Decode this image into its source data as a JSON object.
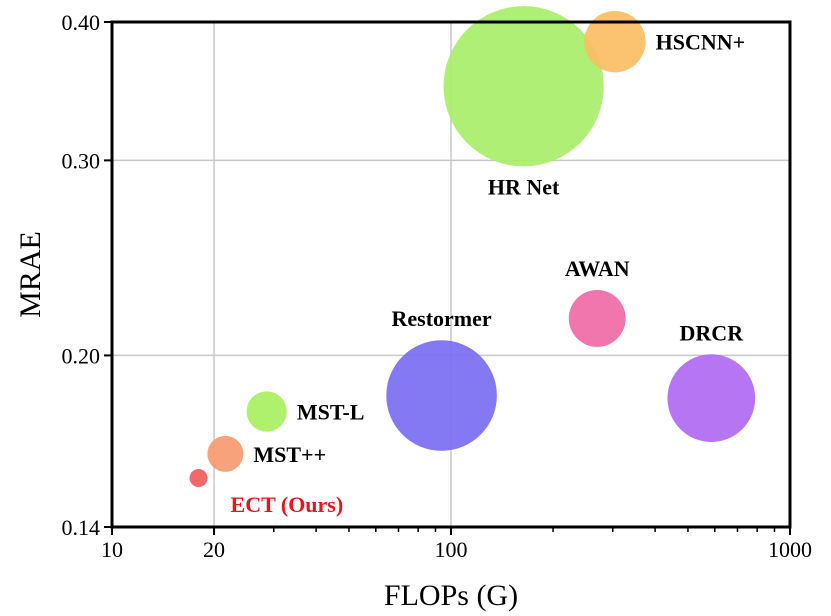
{
  "chart_data": {
    "type": "scatter",
    "title": "",
    "xlabel": "FLOPs (G)",
    "ylabel": "MRAE",
    "xscale": "log",
    "yscale": "log",
    "xlim": [
      10,
      1000
    ],
    "ylim": [
      0.14,
      0.4
    ],
    "xticks": [
      {
        "value": 10,
        "label": "10"
      },
      {
        "value": 20,
        "label": "20"
      },
      {
        "value": 100,
        "label": "100"
      },
      {
        "value": 1000,
        "label": "1000"
      }
    ],
    "yticks": [
      {
        "value": 0.14,
        "label": "0.14"
      },
      {
        "value": 0.2,
        "label": "0.20"
      },
      {
        "value": 0.3,
        "label": "0.30"
      },
      {
        "value": 0.4,
        "label": "0.40"
      }
    ],
    "grid": true,
    "points": [
      {
        "name": "ECT (Ours)",
        "flops": 18,
        "mrae": 0.155,
        "params": 0.4,
        "color": "#f25c5c",
        "label_color": "#e8141e",
        "label_pos": "below"
      },
      {
        "name": "MST++",
        "flops": 21.6,
        "mrae": 0.163,
        "params": 1.6,
        "color": "#f79a70",
        "label_color": "#000000",
        "label_pos": "right"
      },
      {
        "name": "MST-L",
        "flops": 28.6,
        "mrae": 0.178,
        "params": 2.0,
        "color": "#a8f060",
        "label_color": "#000000",
        "label_pos": "right"
      },
      {
        "name": "Restormer",
        "flops": 93.8,
        "mrae": 0.184,
        "params": 15.1,
        "color": "#7a6df2",
        "label_color": "#000000",
        "label_pos": "above"
      },
      {
        "name": "AWAN",
        "flops": 270,
        "mrae": 0.216,
        "params": 4.0,
        "color": "#ef6aa6",
        "label_color": "#000000",
        "label_pos": "above"
      },
      {
        "name": "DRCR",
        "flops": 586,
        "mrae": 0.183,
        "params": 9.5,
        "color": "#b06af2",
        "label_color": "#000000",
        "label_pos": "above"
      },
      {
        "name": "HR Net",
        "flops": 163.8,
        "mrae": 0.35,
        "params": 31.7,
        "color": "#a8ee6a",
        "label_color": "#000000",
        "label_pos": "below"
      },
      {
        "name": "HSCNN+",
        "flops": 304.5,
        "mrae": 0.384,
        "params": 4.65,
        "color": "#fbbd64",
        "label_color": "#000000",
        "label_pos": "right"
      }
    ]
  }
}
